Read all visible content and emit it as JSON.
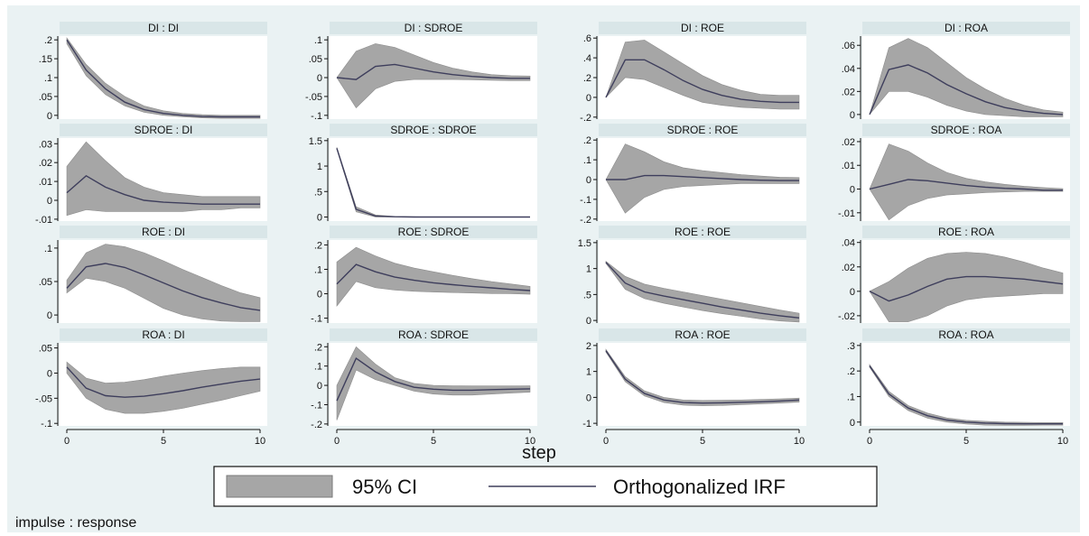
{
  "chart_data": {
    "type": "line",
    "note": "impulse : response",
    "xlabel": "step",
    "xticks": [
      0,
      5,
      10
    ],
    "legend": {
      "position": "bottom",
      "ci_label": "95% CI",
      "line_label": "Orthogonalized IRF"
    },
    "colors": {
      "band": "#a6a6a6",
      "line": "#3e3e5c",
      "strip": "#d9e6e8",
      "background": "#eaf2f3"
    },
    "x": [
      0,
      1,
      2,
      3,
      4,
      5,
      6,
      7,
      8,
      9,
      10
    ],
    "panels": [
      {
        "title": "DI : DI",
        "yticks": [
          {
            "v": 0.2,
            "t": ".2"
          },
          {
            "v": 0.15,
            "t": ".15"
          },
          {
            "v": 0.1,
            "t": ".1"
          },
          {
            "v": 0.05,
            "t": ".05"
          },
          {
            "v": 0,
            "t": "0"
          }
        ],
        "ylim": [
          -0.01,
          0.21
        ],
        "irf": [
          0.2,
          0.12,
          0.07,
          0.035,
          0.015,
          0.005,
          0.0,
          -0.003,
          -0.004,
          -0.004,
          -0.004
        ],
        "lower": [
          0.19,
          0.105,
          0.055,
          0.025,
          0.008,
          0.0,
          -0.004,
          -0.007,
          -0.008,
          -0.008,
          -0.008
        ],
        "upper": [
          0.205,
          0.135,
          0.085,
          0.05,
          0.025,
          0.012,
          0.005,
          0.002,
          0.0,
          0.0,
          0.0
        ]
      },
      {
        "title": "DI : SDROE",
        "yticks": [
          {
            "v": 0.1,
            "t": ".1"
          },
          {
            "v": 0.05,
            "t": ".05"
          },
          {
            "v": 0,
            "t": "0"
          },
          {
            "v": -0.05,
            "t": "-.05"
          },
          {
            "v": -0.1,
            "t": "-.1"
          }
        ],
        "ylim": [
          -0.11,
          0.11
        ],
        "irf": [
          0.0,
          -0.005,
          0.03,
          0.035,
          0.025,
          0.015,
          0.008,
          0.003,
          0.0,
          -0.002,
          -0.002
        ],
        "lower": [
          0.0,
          -0.08,
          -0.03,
          -0.01,
          -0.005,
          -0.005,
          -0.005,
          -0.006,
          -0.007,
          -0.008,
          -0.008
        ],
        "upper": [
          0.0,
          0.07,
          0.09,
          0.08,
          0.06,
          0.04,
          0.025,
          0.015,
          0.008,
          0.005,
          0.004
        ]
      },
      {
        "title": "DI : ROE",
        "yticks": [
          {
            "v": 0.6,
            "t": ".6"
          },
          {
            "v": 0.4,
            "t": ".4"
          },
          {
            "v": 0.2,
            "t": ".2"
          },
          {
            "v": 0,
            "t": "0"
          },
          {
            "v": -0.2,
            "t": "-.2"
          }
        ],
        "ylim": [
          -0.22,
          0.62
        ],
        "irf": [
          0.0,
          0.38,
          0.38,
          0.28,
          0.17,
          0.08,
          0.02,
          -0.02,
          -0.04,
          -0.05,
          -0.05
        ],
        "lower": [
          0.0,
          0.2,
          0.18,
          0.1,
          0.02,
          -0.05,
          -0.08,
          -0.1,
          -0.11,
          -0.12,
          -0.12
        ],
        "upper": [
          0.0,
          0.56,
          0.58,
          0.46,
          0.34,
          0.22,
          0.13,
          0.07,
          0.03,
          0.02,
          0.02
        ]
      },
      {
        "title": "DI : ROA",
        "yticks": [
          {
            "v": 0.06,
            "t": ".06"
          },
          {
            "v": 0.04,
            "t": ".04"
          },
          {
            "v": 0.02,
            "t": ".02"
          },
          {
            "v": 0,
            "t": "0"
          }
        ],
        "ylim": [
          -0.004,
          0.068
        ],
        "irf": [
          0.0,
          0.039,
          0.043,
          0.036,
          0.026,
          0.018,
          0.011,
          0.006,
          0.003,
          0.001,
          0.0
        ],
        "lower": [
          0.0,
          0.02,
          0.02,
          0.015,
          0.008,
          0.003,
          0.0,
          -0.001,
          -0.002,
          -0.002,
          -0.002
        ],
        "upper": [
          0.0,
          0.058,
          0.066,
          0.058,
          0.045,
          0.032,
          0.022,
          0.014,
          0.008,
          0.004,
          0.002
        ]
      },
      {
        "title": "SDROE : DI",
        "yticks": [
          {
            "v": 0.03,
            "t": ".03"
          },
          {
            "v": 0.02,
            "t": ".02"
          },
          {
            "v": 0.01,
            "t": ".01"
          },
          {
            "v": 0,
            "t": "0"
          },
          {
            "v": -0.01,
            "t": "-.01"
          }
        ],
        "ylim": [
          -0.011,
          0.033
        ],
        "irf": [
          0.004,
          0.013,
          0.007,
          0.003,
          0.0,
          -0.001,
          -0.0015,
          -0.002,
          -0.002,
          -0.002,
          -0.002
        ],
        "lower": [
          -0.008,
          -0.005,
          -0.006,
          -0.006,
          -0.006,
          -0.006,
          -0.006,
          -0.005,
          -0.005,
          -0.004,
          -0.004
        ],
        "upper": [
          0.018,
          0.031,
          0.021,
          0.012,
          0.007,
          0.004,
          0.003,
          0.002,
          0.002,
          0.002,
          0.002
        ]
      },
      {
        "title": "SDROE : SDROE",
        "yticks": [
          {
            "v": 1.5,
            "t": "1.5"
          },
          {
            "v": 1,
            "t": "1"
          },
          {
            "v": 0.5,
            "t": ".5"
          },
          {
            "v": 0,
            "t": "0"
          }
        ],
        "ylim": [
          -0.08,
          1.55
        ],
        "irf": [
          1.35,
          0.15,
          0.02,
          0.005,
          0.0,
          0.0,
          0.0,
          0.0,
          0.0,
          0.0,
          0.0
        ],
        "lower": [
          1.33,
          0.1,
          0.0,
          0.0,
          0.0,
          0.0,
          0.0,
          0.0,
          0.0,
          0.0,
          0.0
        ],
        "upper": [
          1.37,
          0.2,
          0.04,
          0.01,
          0.005,
          0.0,
          0.0,
          0.0,
          0.0,
          0.0,
          0.0
        ]
      },
      {
        "title": "SDROE : ROE",
        "yticks": [
          {
            "v": 0.2,
            "t": ".2"
          },
          {
            "v": 0.1,
            "t": ".1"
          },
          {
            "v": 0,
            "t": "0"
          },
          {
            "v": -0.1,
            "t": "-.1"
          },
          {
            "v": -0.2,
            "t": "-.2"
          }
        ],
        "ylim": [
          -0.21,
          0.21
        ],
        "irf": [
          0.0,
          0.0,
          0.02,
          0.02,
          0.015,
          0.01,
          0.005,
          0.0,
          -0.003,
          -0.005,
          -0.005
        ],
        "lower": [
          0.0,
          -0.17,
          -0.09,
          -0.05,
          -0.035,
          -0.03,
          -0.025,
          -0.02,
          -0.02,
          -0.02,
          -0.02
        ],
        "upper": [
          0.0,
          0.18,
          0.14,
          0.09,
          0.06,
          0.045,
          0.035,
          0.025,
          0.018,
          0.012,
          0.01
        ]
      },
      {
        "title": "SDROE : ROA",
        "yticks": [
          {
            "v": 0.02,
            "t": ".02"
          },
          {
            "v": 0.01,
            "t": ".01"
          },
          {
            "v": 0,
            "t": "0"
          },
          {
            "v": -0.01,
            "t": "-.01"
          }
        ],
        "ylim": [
          -0.0135,
          0.0215
        ],
        "irf": [
          0.0,
          0.002,
          0.004,
          0.0035,
          0.0025,
          0.0015,
          0.0008,
          0.0003,
          0.0,
          -0.0005,
          -0.0005
        ],
        "lower": [
          0.0,
          -0.013,
          -0.007,
          -0.004,
          -0.0025,
          -0.002,
          -0.0015,
          -0.0012,
          -0.001,
          -0.001,
          -0.001
        ],
        "upper": [
          0.0,
          0.019,
          0.016,
          0.011,
          0.007,
          0.0045,
          0.003,
          0.002,
          0.0012,
          0.0006,
          0.0002
        ]
      },
      {
        "title": "ROE : DI",
        "yticks": [
          {
            "v": 0.1,
            "t": ".1"
          },
          {
            "v": 0.05,
            "t": ".05"
          },
          {
            "v": 0,
            "t": "0"
          }
        ],
        "ylim": [
          -0.012,
          0.112
        ],
        "irf": [
          0.04,
          0.072,
          0.077,
          0.071,
          0.06,
          0.048,
          0.036,
          0.026,
          0.018,
          0.011,
          0.007
        ],
        "lower": [
          0.033,
          0.055,
          0.05,
          0.04,
          0.025,
          0.01,
          0.0,
          -0.006,
          -0.009,
          -0.01,
          -0.01
        ],
        "upper": [
          0.052,
          0.093,
          0.106,
          0.102,
          0.093,
          0.081,
          0.068,
          0.056,
          0.044,
          0.033,
          0.026
        ]
      },
      {
        "title": "ROE : SDROE",
        "yticks": [
          {
            "v": 0.2,
            "t": ".2"
          },
          {
            "v": 0.1,
            "t": ".1"
          },
          {
            "v": 0,
            "t": "0"
          },
          {
            "v": -0.1,
            "t": "-.1"
          }
        ],
        "ylim": [
          -0.12,
          0.22
        ],
        "irf": [
          0.04,
          0.12,
          0.09,
          0.068,
          0.055,
          0.045,
          0.037,
          0.03,
          0.024,
          0.018,
          0.013
        ],
        "lower": [
          -0.05,
          0.05,
          0.025,
          0.015,
          0.01,
          0.007,
          0.005,
          0.003,
          0.001,
          0.0,
          -0.002
        ],
        "upper": [
          0.13,
          0.19,
          0.155,
          0.125,
          0.105,
          0.09,
          0.075,
          0.062,
          0.05,
          0.04,
          0.03
        ]
      },
      {
        "title": "ROE : ROE",
        "yticks": [
          {
            "v": 1.5,
            "t": "1.5"
          },
          {
            "v": 1,
            "t": "1"
          },
          {
            "v": 0.5,
            "t": ".5"
          },
          {
            "v": 0,
            "t": "0"
          }
        ],
        "ylim": [
          -0.05,
          1.55
        ],
        "irf": [
          1.12,
          0.72,
          0.55,
          0.47,
          0.4,
          0.33,
          0.26,
          0.2,
          0.14,
          0.09,
          0.05
        ],
        "lower": [
          1.1,
          0.6,
          0.42,
          0.33,
          0.26,
          0.19,
          0.13,
          0.08,
          0.03,
          -0.01,
          -0.03
        ],
        "upper": [
          1.14,
          0.85,
          0.7,
          0.62,
          0.55,
          0.48,
          0.41,
          0.34,
          0.27,
          0.2,
          0.14
        ]
      },
      {
        "title": "ROE : ROA",
        "yticks": [
          {
            "v": 0.04,
            "t": ".04"
          },
          {
            "v": 0.02,
            "t": ".02"
          },
          {
            "v": 0,
            "t": "0"
          },
          {
            "v": -0.02,
            "t": "-.02"
          }
        ],
        "ylim": [
          -0.026,
          0.042
        ],
        "irf": [
          0.0,
          -0.008,
          -0.003,
          0.004,
          0.01,
          0.012,
          0.012,
          0.011,
          0.01,
          0.008,
          0.006
        ],
        "lower": [
          0.0,
          -0.025,
          -0.025,
          -0.02,
          -0.012,
          -0.007,
          -0.005,
          -0.004,
          -0.003,
          -0.002,
          -0.002
        ],
        "upper": [
          0.0,
          0.008,
          0.019,
          0.027,
          0.031,
          0.032,
          0.031,
          0.028,
          0.024,
          0.019,
          0.015
        ]
      },
      {
        "title": "ROA : DI",
        "yticks": [
          {
            "v": 0.05,
            "t": ".05"
          },
          {
            "v": 0,
            "t": "0"
          },
          {
            "v": -0.05,
            "t": "-.05"
          },
          {
            "v": -0.1,
            "t": "-.1"
          }
        ],
        "ylim": [
          -0.105,
          0.06
        ],
        "irf": [
          0.012,
          -0.03,
          -0.045,
          -0.048,
          -0.046,
          -0.041,
          -0.035,
          -0.028,
          -0.022,
          -0.016,
          -0.012
        ],
        "lower": [
          0.0,
          -0.05,
          -0.072,
          -0.08,
          -0.08,
          -0.076,
          -0.07,
          -0.062,
          -0.054,
          -0.045,
          -0.036
        ],
        "upper": [
          0.022,
          -0.01,
          -0.02,
          -0.018,
          -0.013,
          -0.006,
          0.0,
          0.005,
          0.009,
          0.012,
          0.012
        ]
      },
      {
        "title": "ROA : SDROE",
        "yticks": [
          {
            "v": 0.2,
            "t": ".2"
          },
          {
            "v": 0.1,
            "t": ".1"
          },
          {
            "v": 0,
            "t": "0"
          },
          {
            "v": -0.1,
            "t": "-.1"
          },
          {
            "v": -0.2,
            "t": "-.2"
          }
        ],
        "ylim": [
          -0.21,
          0.22
        ],
        "irf": [
          -0.08,
          0.14,
          0.07,
          0.02,
          -0.01,
          -0.02,
          -0.025,
          -0.025,
          -0.022,
          -0.02,
          -0.018
        ],
        "lower": [
          -0.18,
          0.08,
          0.03,
          0.0,
          -0.03,
          -0.045,
          -0.05,
          -0.05,
          -0.045,
          -0.04,
          -0.035
        ],
        "upper": [
          0.0,
          0.2,
          0.11,
          0.04,
          0.01,
          0.0,
          -0.002,
          -0.003,
          -0.003,
          -0.003,
          -0.002
        ]
      },
      {
        "title": "ROA : ROE",
        "yticks": [
          {
            "v": 2,
            "t": "2"
          },
          {
            "v": 1,
            "t": "1"
          },
          {
            "v": 0,
            "t": "0"
          },
          {
            "v": -1,
            "t": "-1"
          }
        ],
        "ylim": [
          -1.1,
          2.1
        ],
        "irf": [
          1.8,
          0.7,
          0.15,
          -0.1,
          -0.2,
          -0.22,
          -0.21,
          -0.19,
          -0.17,
          -0.14,
          -0.1
        ],
        "lower": [
          1.75,
          0.6,
          0.05,
          -0.2,
          -0.3,
          -0.32,
          -0.31,
          -0.28,
          -0.25,
          -0.22,
          -0.18
        ],
        "upper": [
          1.85,
          0.8,
          0.25,
          0.0,
          -0.1,
          -0.12,
          -0.11,
          -0.1,
          -0.08,
          -0.06,
          -0.03
        ]
      },
      {
        "title": "ROA : ROA",
        "yticks": [
          {
            "v": 0.3,
            "t": ".3"
          },
          {
            "v": 0.2,
            "t": ".2"
          },
          {
            "v": 0.1,
            "t": ".1"
          },
          {
            "v": 0,
            "t": "0"
          }
        ],
        "ylim": [
          -0.015,
          0.31
        ],
        "irf": [
          0.22,
          0.11,
          0.055,
          0.025,
          0.008,
          0.0,
          -0.004,
          -0.006,
          -0.007,
          -0.007,
          -0.007
        ],
        "lower": [
          0.215,
          0.1,
          0.045,
          0.015,
          0.0,
          -0.008,
          -0.012,
          -0.013,
          -0.013,
          -0.012,
          -0.012
        ],
        "upper": [
          0.225,
          0.12,
          0.065,
          0.035,
          0.016,
          0.007,
          0.003,
          0.0,
          -0.001,
          -0.002,
          -0.002
        ]
      }
    ]
  }
}
